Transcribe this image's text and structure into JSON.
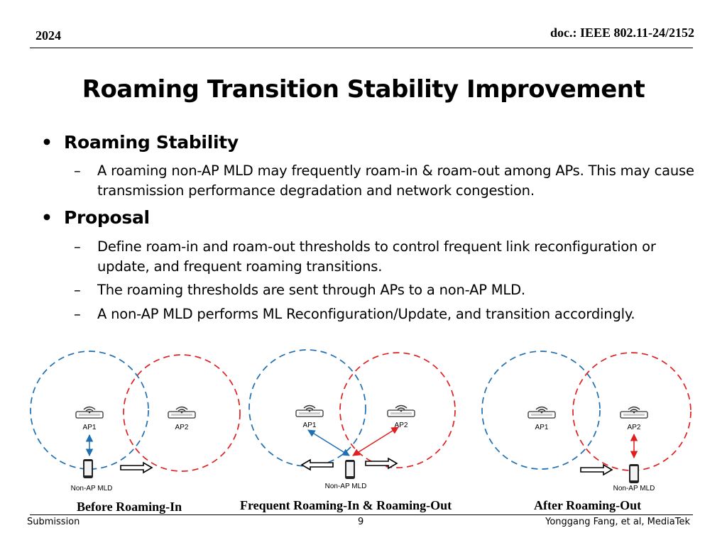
{
  "header": {
    "year": "2024",
    "doc_id": "doc.: IEEE 802.11-24/2152"
  },
  "title": "Roaming Transition Stability Improvement",
  "sections": [
    {
      "heading": "Roaming Stability",
      "items": [
        "A roaming non-AP MLD may frequently roam-in & roam-out among APs. This may cause transmission performance degradation and network congestion."
      ]
    },
    {
      "heading": "Proposal",
      "items": [
        "Define roam-in and roam-out thresholds to control frequent link reconfiguration or update, and frequent roaming transitions.",
        "The roaming thresholds are sent through APs to a non-AP MLD.",
        "A non-AP MLD performs ML Reconfiguration/Update, and transition accordingly."
      ]
    }
  ],
  "diagrams": [
    {
      "ap1": "AP1",
      "ap2": "AP2",
      "sta": "Non-AP MLD",
      "caption": "Before Roaming-In"
    },
    {
      "ap1": "AP1",
      "ap2": "AP2",
      "sta": "Non-AP MLD",
      "caption": "Frequent Roaming-In & Roaming-Out"
    },
    {
      "ap1": "AP1",
      "ap2": "AP2",
      "sta": "Non-AP MLD",
      "caption": "After Roaming-Out"
    }
  ],
  "colors": {
    "ap1_circle": "#1f6fb2",
    "ap2_circle": "#e02020",
    "ap1_link": "#1f6fb2",
    "ap2_link": "#e02020"
  },
  "footer": {
    "left": "Submission",
    "page": "9",
    "right": "Yonggang Fang, et al, MediaTek"
  }
}
